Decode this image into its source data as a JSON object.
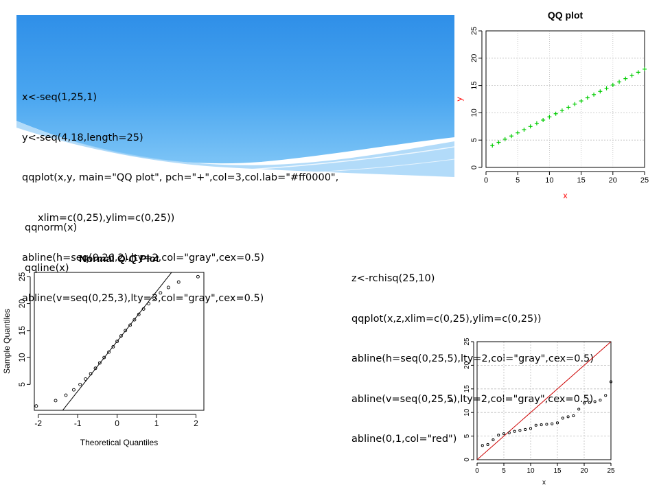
{
  "code_blocks": {
    "qq_code": [
      "x<-seq(1,25,1)",
      "y<-seq(4,18,length=25)",
      "qqplot(x,y, main=\"QQ plot\", pch=\"+\",col=3,col.lab=\"#ff0000\",",
      "     xlim=c(0,25),ylim=c(0,25))",
      "abline(h=seq(0,26,2),lty=2,col=\"gray\",cex=0.5)",
      "abline(v=seq(0,25,3),lty=3,col=\"gray\",cex=0.5)"
    ],
    "qqnorm_code": [
      "qqnorm(x)",
      "qqline(x)"
    ],
    "rchisq_code": [
      "z<-rchisq(25,10)",
      "qqplot(x,z,xlim=c(0,25),ylim=c(0,25))",
      "abline(h=seq(0,25,5),lty=2,col=\"gray\",cex=0.5)",
      "abline(v=seq(0,25,5),lty=2,col=\"gray\",cex=0.5)",
      "abline(0,1,col=\"red\")"
    ]
  },
  "colors": {
    "banner_blue": "#2f8fe8",
    "banner_light": "#9fd2f7",
    "points_green": "#00cc00",
    "axis_label_red": "#ff0000",
    "grid_gray": "#bebebe",
    "line_red": "#cc0000"
  },
  "chart_data": [
    {
      "id": "qq_plot",
      "type": "scatter",
      "title": "QQ plot",
      "xlabel": "x",
      "ylabel": "y",
      "xlim": [
        0,
        25
      ],
      "ylim": [
        0,
        25
      ],
      "xticks": [
        0,
        5,
        10,
        15,
        20,
        25
      ],
      "yticks": [
        0,
        5,
        10,
        15,
        20,
        25
      ],
      "grid": true,
      "marker": "+",
      "x": [
        1,
        2,
        3,
        4,
        5,
        6,
        7,
        8,
        9,
        10,
        11,
        12,
        13,
        14,
        15,
        16,
        17,
        18,
        19,
        20,
        21,
        22,
        23,
        24,
        25
      ],
      "y": [
        4,
        4.583,
        5.167,
        5.75,
        6.333,
        6.917,
        7.5,
        8.083,
        8.667,
        9.25,
        9.833,
        10.417,
        11,
        11.583,
        12.167,
        12.75,
        13.333,
        13.917,
        14.5,
        15.083,
        15.667,
        16.25,
        16.833,
        17.417,
        18
      ]
    },
    {
      "id": "normal_qq",
      "type": "scatter",
      "title": "Normal Q-Q Plot",
      "xlabel": "Theoretical Quantiles",
      "ylabel": "Sample Quantiles",
      "xlim": [
        -2.1,
        2.2
      ],
      "ylim": [
        0.2,
        25.8
      ],
      "xticks": [
        -2,
        -1,
        0,
        1,
        2
      ],
      "yticks": [
        5,
        10,
        15,
        20,
        25
      ],
      "marker": "o",
      "x": [
        -2.05,
        -1.56,
        -1.3,
        -1.1,
        -0.94,
        -0.8,
        -0.67,
        -0.55,
        -0.44,
        -0.33,
        -0.21,
        -0.1,
        0,
        0.1,
        0.21,
        0.33,
        0.44,
        0.55,
        0.67,
        0.8,
        0.94,
        1.1,
        1.3,
        1.56,
        2.05
      ],
      "y": [
        1,
        2,
        3,
        4,
        5,
        6,
        7,
        8,
        9,
        10,
        11,
        12,
        13,
        14,
        15,
        16,
        17,
        18,
        19,
        20,
        21,
        22,
        23,
        24,
        25
      ],
      "line": {
        "intercept": 13,
        "slope": 9.27
      }
    },
    {
      "id": "chisq_qq",
      "type": "scatter",
      "title": "",
      "xlabel": "x",
      "ylabel": "z",
      "xlim": [
        0,
        25
      ],
      "ylim": [
        0,
        25
      ],
      "xticks": [
        0,
        5,
        10,
        15,
        20,
        25
      ],
      "yticks": [
        0,
        5,
        10,
        15,
        20,
        25
      ],
      "grid": true,
      "marker": "o",
      "x": [
        1,
        2,
        3,
        4,
        5,
        6,
        7,
        8,
        9,
        10,
        11,
        12,
        13,
        14,
        15,
        16,
        17,
        18,
        19,
        20,
        21,
        22,
        23,
        24,
        25
      ],
      "y": [
        3,
        3.2,
        4.2,
        5.2,
        5.5,
        5.7,
        6,
        6.2,
        6.4,
        6.6,
        7.3,
        7.4,
        7.5,
        7.6,
        7.8,
        8.8,
        9.1,
        9.3,
        10.7,
        12,
        12.1,
        12.3,
        12.6,
        13.6,
        16.5
      ],
      "line": {
        "intercept": 0,
        "slope": 1
      }
    }
  ]
}
